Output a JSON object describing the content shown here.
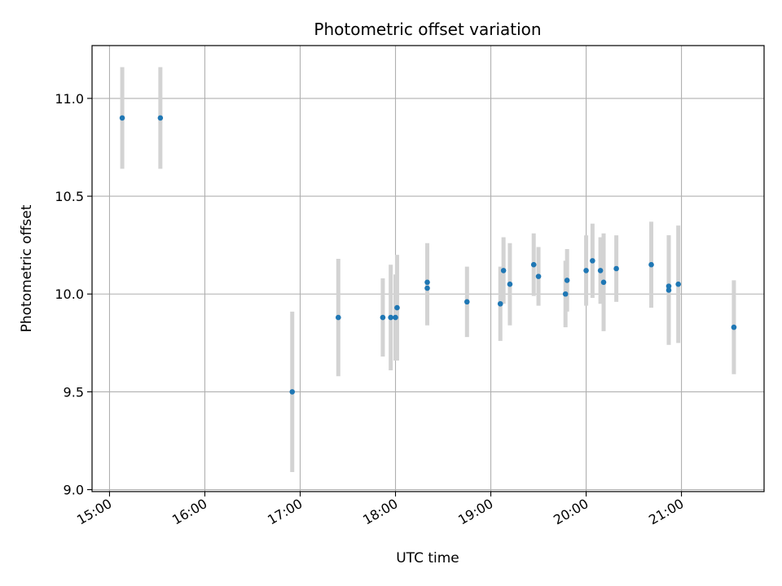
{
  "chart_data": {
    "type": "scatter",
    "title": "Photometric offset variation",
    "xlabel": "UTC time",
    "ylabel": "Photometric offset",
    "xlim": [
      "14:49",
      "21:52"
    ],
    "ylim": [
      8.99,
      11.27
    ],
    "x_ticks": [
      "15:00",
      "16:00",
      "17:00",
      "18:00",
      "19:00",
      "20:00",
      "21:00"
    ],
    "y_ticks": [
      "9.0",
      "9.5",
      "10.0",
      "10.5",
      "11.0"
    ],
    "grid": true,
    "colors": {
      "point": "#1f77b4",
      "errorbar": "#d3d3d3",
      "grid": "#b0b0b0"
    },
    "points": [
      {
        "time": "15:08",
        "y": 10.9,
        "err": 0.26
      },
      {
        "time": "15:32",
        "y": 10.9,
        "err": 0.26
      },
      {
        "time": "16:55",
        "y": 9.5,
        "err": 0.41
      },
      {
        "time": "17:24",
        "y": 9.88,
        "err": 0.3
      },
      {
        "time": "17:52",
        "y": 9.88,
        "err": 0.2
      },
      {
        "time": "17:57",
        "y": 9.88,
        "err": 0.27
      },
      {
        "time": "18:00",
        "y": 9.88,
        "err": 0.22
      },
      {
        "time": "18:01",
        "y": 9.93,
        "err": 0.27
      },
      {
        "time": "18:20",
        "y": 10.06,
        "err": 0.2
      },
      {
        "time": "18:20",
        "y": 10.03,
        "err": 0.19
      },
      {
        "time": "18:45",
        "y": 9.96,
        "err": 0.18
      },
      {
        "time": "19:06",
        "y": 9.95,
        "err": 0.19
      },
      {
        "time": "19:08",
        "y": 10.12,
        "err": 0.17
      },
      {
        "time": "19:12",
        "y": 10.05,
        "err": 0.21
      },
      {
        "time": "19:27",
        "y": 10.15,
        "err": 0.16
      },
      {
        "time": "19:30",
        "y": 10.09,
        "err": 0.15
      },
      {
        "time": "19:47",
        "y": 10.0,
        "err": 0.17
      },
      {
        "time": "19:48",
        "y": 10.07,
        "err": 0.16
      },
      {
        "time": "20:00",
        "y": 10.12,
        "err": 0.18
      },
      {
        "time": "20:04",
        "y": 10.17,
        "err": 0.19
      },
      {
        "time": "20:09",
        "y": 10.12,
        "err": 0.17
      },
      {
        "time": "20:11",
        "y": 10.06,
        "err": 0.25
      },
      {
        "time": "20:19",
        "y": 10.13,
        "err": 0.17
      },
      {
        "time": "20:41",
        "y": 10.15,
        "err": 0.22
      },
      {
        "time": "20:52",
        "y": 10.02,
        "err": 0.28
      },
      {
        "time": "20:52",
        "y": 10.04,
        "err": 0.26
      },
      {
        "time": "20:58",
        "y": 10.05,
        "err": 0.3
      },
      {
        "time": "21:33",
        "y": 9.83,
        "err": 0.24
      }
    ]
  }
}
